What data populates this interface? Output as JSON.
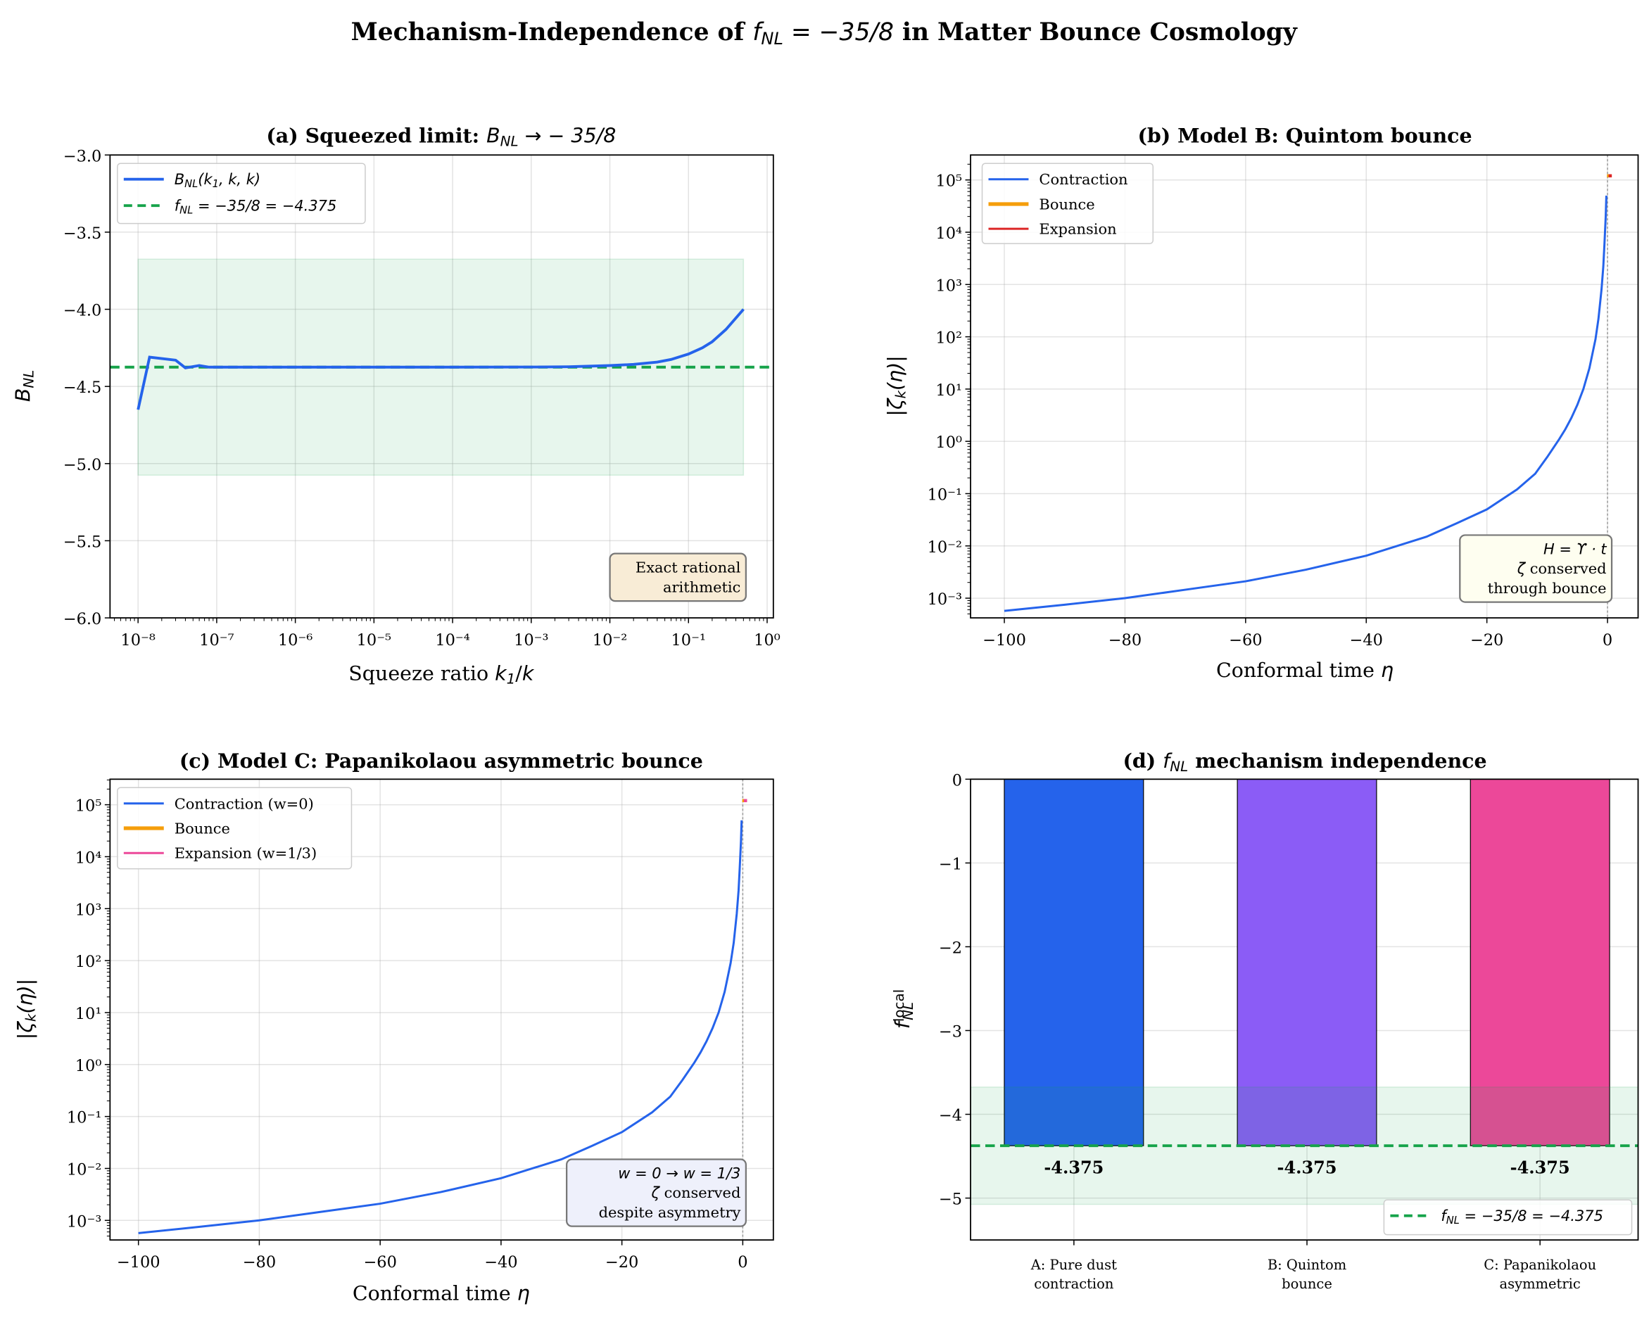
{
  "figure_title": [
    {
      "t": "Mechanism-Independence of "
    },
    {
      "t": "f",
      "s": "m"
    },
    {
      "t": "NL",
      "s": "sub"
    },
    {
      "t": " = −35/8",
      "s": "ms"
    },
    {
      "t": " in Matter Bounce Cosmology"
    }
  ],
  "colors": {
    "blue": "#2563eb",
    "green": "#16a34a",
    "orange": "#f59e0b",
    "red": "#dc2626",
    "purple": "#8b5cf6",
    "pink": "#ec4899"
  },
  "chart_data": [
    {
      "type": "line",
      "title": [
        {
          "t": "(a) Squeezed limit: "
        },
        {
          "t": "B",
          "s": "m"
        },
        {
          "t": "NL",
          "s": "sub"
        },
        {
          "t": " → − 35/8",
          "s": "ms"
        }
      ],
      "xlabel": [
        {
          "t": "Squeeze ratio "
        },
        {
          "t": "k",
          "s": "m"
        },
        {
          "t": "1",
          "s": "sub"
        },
        {
          "t": "/"
        },
        {
          "t": "k",
          "s": "m"
        }
      ],
      "ylabel": [
        {
          "t": "B",
          "s": "m"
        },
        {
          "t": "NL",
          "s": "sub"
        }
      ],
      "xscale": "log",
      "xlim": [
        4.4e-09,
        1.2
      ],
      "ylim": [
        -6,
        -3
      ],
      "grid": true,
      "legend": "upper left",
      "x_ticks": [
        1e-08,
        1e-07,
        1e-06,
        1e-05,
        0.0001,
        0.001,
        0.01,
        0.1,
        1
      ],
      "x_tick_labels": [
        "10⁻⁸",
        "10⁻⁷",
        "10⁻⁶",
        "10⁻⁵",
        "10⁻⁴",
        "10⁻³",
        "10⁻²",
        "10⁻¹",
        "10⁰"
      ],
      "y_ticks": [
        -6,
        -5.5,
        -5,
        -4.5,
        -4,
        -3.5,
        -3
      ],
      "y_tick_labels": [
        "−6.0",
        "−5.5",
        "−5.0",
        "−4.5",
        "−4.0",
        "−3.5",
        "−3.0"
      ],
      "band": {
        "x": [
          1e-08,
          0.5
        ],
        "y": [
          -5.075,
          -3.675
        ],
        "color": "#16a34a"
      },
      "hline": {
        "y": -4.375,
        "color": "#16a34a",
        "name": [
          {
            "t": "f",
            "s": "m"
          },
          {
            "t": "NL",
            "s": "sub"
          },
          {
            "t": " = −35/8 = −4.375",
            "s": "ms"
          }
        ]
      },
      "series": [
        {
          "name": [
            {
              "t": "B",
              "s": "m"
            },
            {
              "t": "NL",
              "s": "sub"
            },
            {
              "t": "(k",
              "s": "ms"
            },
            {
              "t": "1",
              "s": "sub"
            },
            {
              "t": ", k, k)",
              "s": "ms"
            }
          ],
          "color": "#2563eb",
          "x": [
            1e-08,
            1.4e-08,
            3e-08,
            4e-08,
            6e-08,
            8e-08,
            1e-07,
            1e-06,
            1e-05,
            0.0001,
            0.001,
            0.003,
            0.01,
            0.02,
            0.04,
            0.06,
            0.1,
            0.15,
            0.2,
            0.3,
            0.5
          ],
          "y": [
            -4.65,
            -4.31,
            -4.33,
            -4.38,
            -4.365,
            -4.375,
            -4.375,
            -4.375,
            -4.375,
            -4.375,
            -4.374,
            -4.372,
            -4.365,
            -4.357,
            -4.342,
            -4.325,
            -4.29,
            -4.25,
            -4.21,
            -4.13,
            -4.0
          ]
        }
      ],
      "annotation": {
        "lines": [
          "Exact rational",
          "arithmetic"
        ],
        "bg": "#f8ecd6"
      }
    },
    {
      "type": "line",
      "title": [
        {
          "t": "(b) Model B: Quintom bounce"
        }
      ],
      "xlabel": [
        {
          "t": "Conformal time "
        },
        {
          "t": "η",
          "s": "m"
        }
      ],
      "ylabel": [
        {
          "t": "|ζ",
          "s": "ms"
        },
        {
          "t": "k",
          "s": "sub"
        },
        {
          "t": "(η)|",
          "s": "ms"
        }
      ],
      "yscale": "log",
      "xlim": [
        -105.6,
        5.07
      ],
      "ylim": [
        0.00042,
        300000.0
      ],
      "grid": true,
      "legend": "upper left",
      "x_ticks": [
        -100,
        -80,
        -60,
        -40,
        -20,
        0
      ],
      "x_tick_labels": [
        "−100",
        "−80",
        "−60",
        "−40",
        "−20",
        "0"
      ],
      "y_ticks": [
        0.001,
        0.01,
        0.1,
        1,
        10,
        100,
        1000.0,
        10000.0,
        100000.0
      ],
      "y_tick_labels": [
        "10⁻³",
        "10⁻²",
        "10⁻¹",
        "10⁰",
        "10¹",
        "10²",
        "10³",
        "10⁴",
        "10⁵"
      ],
      "vline": {
        "x": 0
      },
      "series": [
        {
          "name": [
            {
              "t": "Contraction"
            }
          ],
          "color": "#2563eb",
          "x": [
            -100,
            -90,
            -80,
            -70,
            -60,
            -50,
            -40,
            -30,
            -25,
            -20,
            -15,
            -12,
            -10,
            -8,
            -7,
            -6,
            -5,
            -4,
            -3,
            -2,
            -1.5,
            -1,
            -0.7,
            -0.5,
            -0.3,
            -0.2
          ],
          "y": [
            0.00057,
            0.00075,
            0.001,
            0.00145,
            0.0021,
            0.0035,
            0.0065,
            0.015,
            0.027,
            0.05,
            0.12,
            0.24,
            0.5,
            1.1,
            1.7,
            2.8,
            5,
            10,
            25,
            90,
            220,
            800,
            2200,
            6000,
            20000.0,
            50000.0
          ]
        },
        {
          "name": [
            {
              "t": "Bounce"
            }
          ],
          "color": "#f59e0b",
          "x": [
            0.0
          ],
          "y": [
            120000.0
          ]
        },
        {
          "name": [
            {
              "t": "Expansion"
            }
          ],
          "color": "#dc2626",
          "x": [
            0.1
          ],
          "y": [
            120000.0
          ]
        }
      ],
      "annotation": {
        "lines": [
          [
            {
              "t": "H",
              "s": "m"
            },
            {
              "t": " = ϒ · ",
              "s": "ms"
            },
            {
              "t": "t",
              "s": "m"
            }
          ],
          [
            {
              "t": "ζ",
              "s": "m"
            },
            {
              "t": " conserved"
            }
          ],
          [
            {
              "t": "through bounce"
            }
          ]
        ],
        "bg": "#fefef0"
      }
    },
    {
      "type": "line",
      "title": [
        {
          "t": "(c) Model C: Papanikolaou asymmetric bounce"
        }
      ],
      "xlabel": [
        {
          "t": "Conformal time "
        },
        {
          "t": "η",
          "s": "m"
        }
      ],
      "ylabel": [
        {
          "t": "|ζ",
          "s": "ms"
        },
        {
          "t": "k",
          "s": "sub"
        },
        {
          "t": "(η)|",
          "s": "ms"
        }
      ],
      "yscale": "log",
      "xlim": [
        -104.7,
        5.06
      ],
      "ylim": [
        0.00042,
        310000.0
      ],
      "grid": true,
      "legend": "upper left",
      "x_ticks": [
        -100,
        -80,
        -60,
        -40,
        -20,
        0
      ],
      "x_tick_labels": [
        "−100",
        "−80",
        "−60",
        "−40",
        "−20",
        "0"
      ],
      "y_ticks": [
        0.001,
        0.01,
        0.1,
        1,
        10,
        100,
        1000.0,
        10000.0,
        100000.0
      ],
      "y_tick_labels": [
        "10⁻³",
        "10⁻²",
        "10⁻¹",
        "10⁰",
        "10¹",
        "10²",
        "10³",
        "10⁴",
        "10⁵"
      ],
      "vline": {
        "x": 0
      },
      "series": [
        {
          "name": [
            {
              "t": "Contraction (w=0)"
            }
          ],
          "color": "#2563eb",
          "x": [
            -100,
            -90,
            -80,
            -70,
            -60,
            -50,
            -40,
            -30,
            -25,
            -20,
            -15,
            -12,
            -10,
            -8,
            -7,
            -6,
            -5,
            -4,
            -3,
            -2,
            -1.5,
            -1,
            -0.7,
            -0.5,
            -0.3,
            -0.2
          ],
          "y": [
            0.00057,
            0.00075,
            0.001,
            0.00145,
            0.0021,
            0.0035,
            0.0065,
            0.015,
            0.027,
            0.05,
            0.12,
            0.24,
            0.5,
            1.1,
            1.7,
            2.8,
            5,
            10,
            25,
            90,
            220,
            800,
            2200,
            6000,
            20000.0,
            50000.0
          ]
        },
        {
          "name": [
            {
              "t": "Bounce"
            }
          ],
          "color": "#f59e0b",
          "x": [
            0.0
          ],
          "y": [
            120000.0
          ]
        },
        {
          "name": [
            {
              "t": "Expansion (w=1/3)"
            }
          ],
          "color": "#ec4899",
          "x": [
            0.1
          ],
          "y": [
            120000.0
          ]
        }
      ],
      "annotation": {
        "lines": [
          [
            {
              "t": "w",
              "s": "m"
            },
            {
              "t": " = 0 → ",
              "s": "ms"
            },
            {
              "t": "w",
              "s": "m"
            },
            {
              "t": " = 1/3",
              "s": "ms"
            }
          ],
          [
            {
              "t": "ζ",
              "s": "m"
            },
            {
              "t": " conserved"
            }
          ],
          [
            {
              "t": "despite asymmetry"
            }
          ]
        ],
        "bg": "#eef0fb"
      }
    },
    {
      "type": "bar",
      "title": [
        {
          "t": "(d) "
        },
        {
          "t": "f",
          "s": "m"
        },
        {
          "t": "NL",
          "s": "sub"
        },
        {
          "t": " mechanism independence"
        }
      ],
      "ylabel": [
        {
          "t": "f",
          "s": "m"
        },
        {
          "t": "local",
          "s": "sup"
        },
        {
          "t": "NL",
          "s": "subb"
        }
      ],
      "ylim": [
        -5.5,
        0
      ],
      "grid": true,
      "legend": "lower right",
      "categories": [
        [
          "A: Pure dust",
          "contraction"
        ],
        [
          "B: Quintom",
          "bounce"
        ],
        [
          "C: Papanikolaou",
          "asymmetric"
        ]
      ],
      "values": [
        -4.375,
        -4.375,
        -4.375
      ],
      "data_labels": [
        "-4.375",
        "-4.375",
        "-4.375"
      ],
      "bar_colors": [
        "#2563eb",
        "#8b5cf6",
        "#ec4899"
      ],
      "y_ticks": [
        -5,
        -4,
        -3,
        -2,
        -1,
        0
      ],
      "y_tick_labels": [
        "−5",
        "−4",
        "−3",
        "−2",
        "−1",
        "0"
      ],
      "band": {
        "y": [
          -5.075,
          -3.675
        ],
        "color": "#16a34a"
      },
      "hline": {
        "y": -4.375,
        "color": "#16a34a",
        "name": [
          {
            "t": "f",
            "s": "m"
          },
          {
            "t": "NL",
            "s": "sub"
          },
          {
            "t": " = −35/8 = −4.375",
            "s": "ms"
          }
        ]
      }
    }
  ]
}
